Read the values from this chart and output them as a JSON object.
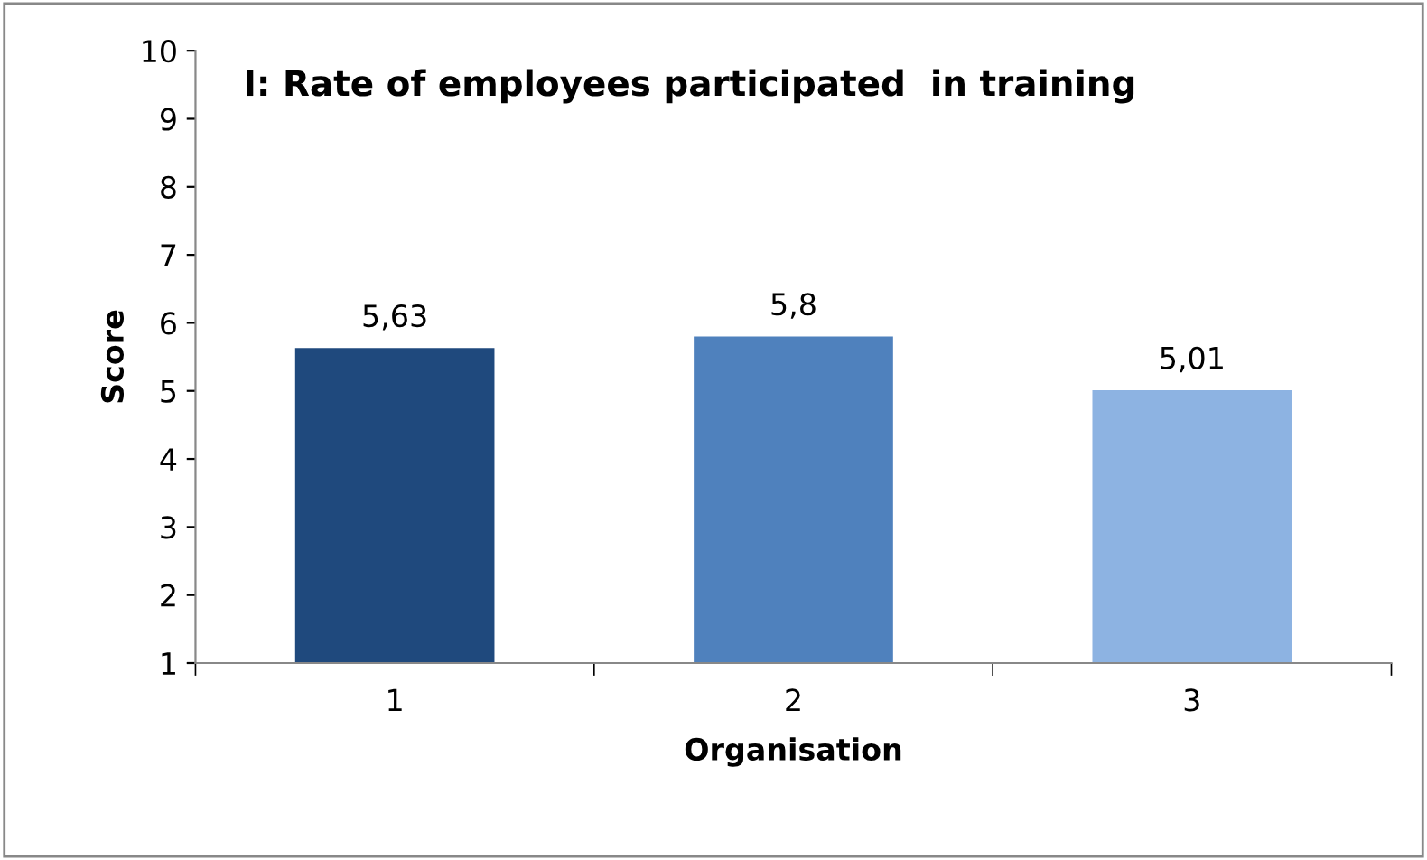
{
  "chart_data": {
    "type": "bar",
    "title": "I: Rate of employees participated  in training",
    "xlabel": "Organisation",
    "ylabel": "Score",
    "categories": [
      "1",
      "2",
      "3"
    ],
    "values": [
      5.63,
      5.8,
      5.01
    ],
    "value_labels": [
      "5,63",
      "5,8",
      "5,01"
    ],
    "colors": [
      "#1f497d",
      "#4f81bd",
      "#8db3e2"
    ],
    "ylim": [
      1,
      10
    ],
    "yticks": [
      1,
      2,
      3,
      4,
      5,
      6,
      7,
      8,
      9,
      10
    ],
    "grid": false
  }
}
